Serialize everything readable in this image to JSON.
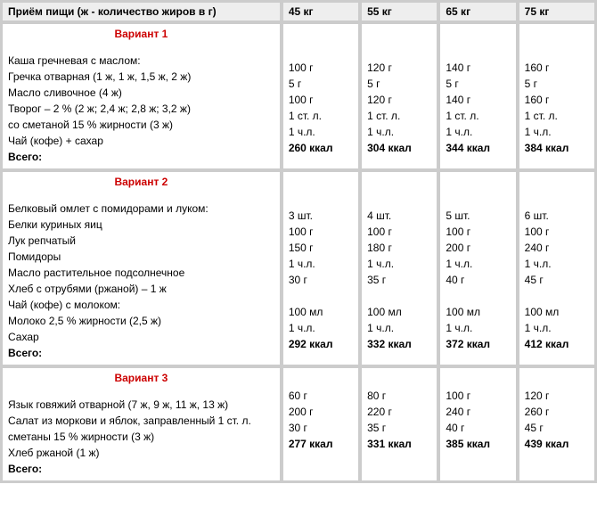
{
  "header": {
    "label": "Приём пищи (ж - количество жиров в г)",
    "weights": [
      "45 кг",
      "55 кг",
      "65 кг",
      "75 кг"
    ]
  },
  "variants": [
    {
      "title": "Вариант 1",
      "subtitle": "Каша гречневая с маслом:",
      "rows": [
        {
          "label": "Гречка отварная (1 ж, 1 ж, 1,5 ж, 2 ж)",
          "vals": [
            "100 г",
            "120 г",
            "140 г",
            "160 г"
          ]
        },
        {
          "label": "Масло сливочное (4 ж)",
          "vals": [
            "5 г",
            "5 г",
            "5 г",
            "5 г"
          ]
        },
        {
          "label": "Творог – 2 % (2 ж; 2,4 ж; 2,8 ж; 3,2 ж)",
          "vals": [
            "100 г",
            "120 г",
            "140 г",
            "160 г"
          ]
        },
        {
          "label": "со сметаной 15 % жирности (3 ж)",
          "vals": [
            "1 ст. л.",
            "1 ст. л.",
            "1 ст. л.",
            "1 ст. л."
          ]
        },
        {
          "label": "Чай (кофе) + сахар",
          "vals": [
            "1 ч.л.",
            "1 ч.л.",
            "1 ч.л.",
            "1 ч.л."
          ]
        }
      ],
      "total": {
        "label": "Всего:",
        "vals": [
          "260 ккал",
          "304 ккал",
          "344 ккал",
          "384 ккал"
        ]
      }
    },
    {
      "title": "Вариант 2",
      "subtitle": "Белковый омлет с помидорами и луком:",
      "rows": [
        {
          "label": "Белки куриных яиц",
          "vals": [
            "3 шт.",
            "4 шт.",
            "5 шт.",
            "6 шт."
          ]
        },
        {
          "label": "Лук репчатый",
          "vals": [
            "100 г",
            "100 г",
            "100 г",
            "100 г"
          ]
        },
        {
          "label": "Помидоры",
          "vals": [
            "150 г",
            "180 г",
            "200 г",
            "240 г"
          ]
        },
        {
          "label": "Масло растительное подсолнечное",
          "vals": [
            "1 ч.л.",
            "1 ч.л.",
            "1 ч.л.",
            "1 ч.л."
          ]
        },
        {
          "label": "Хлеб с отрубями (ржаной) – 1 ж",
          "vals": [
            "30 г",
            "35 г",
            "40 г",
            "45 г"
          ]
        },
        {
          "label": "Чай (кофе) с молоком:",
          "vals": [
            "",
            "",
            "",
            ""
          ]
        },
        {
          "label": "Молоко 2,5 % жирности (2,5 ж)",
          "vals": [
            "100 мл",
            "100 мл",
            "100 мл",
            "100 мл"
          ]
        },
        {
          "label": "Сахар",
          "vals": [
            "1 ч.л.",
            "1 ч.л.",
            "1 ч.л.",
            "1 ч.л."
          ]
        }
      ],
      "total": {
        "label": "Всего:",
        "vals": [
          "292 ккал",
          "332 ккал",
          "372 ккал",
          "412 ккал"
        ]
      }
    },
    {
      "title": "Вариант 3",
      "subtitle": "",
      "rows": [
        {
          "label": "Язык говяжий отварной (7 ж, 9 ж, 11 ж, 13 ж)",
          "vals": [
            "60 г",
            "80 г",
            "100 г",
            "120 г"
          ]
        },
        {
          "label": "Салат из моркови и яблок, заправленный 1 ст. л. сметаны 15 % жирности (3 ж)",
          "vals": [
            "200 г",
            "220 г",
            "240 г",
            "260 г"
          ]
        },
        {
          "label": "Хлеб ржаной (1 ж)",
          "vals": [
            "30 г",
            "35 г",
            "40 г",
            "45 г"
          ]
        }
      ],
      "total": {
        "label": "Всего:",
        "vals": [
          "277 ккал",
          "331 ккал",
          "385 ккал",
          "439 ккал"
        ]
      }
    }
  ]
}
